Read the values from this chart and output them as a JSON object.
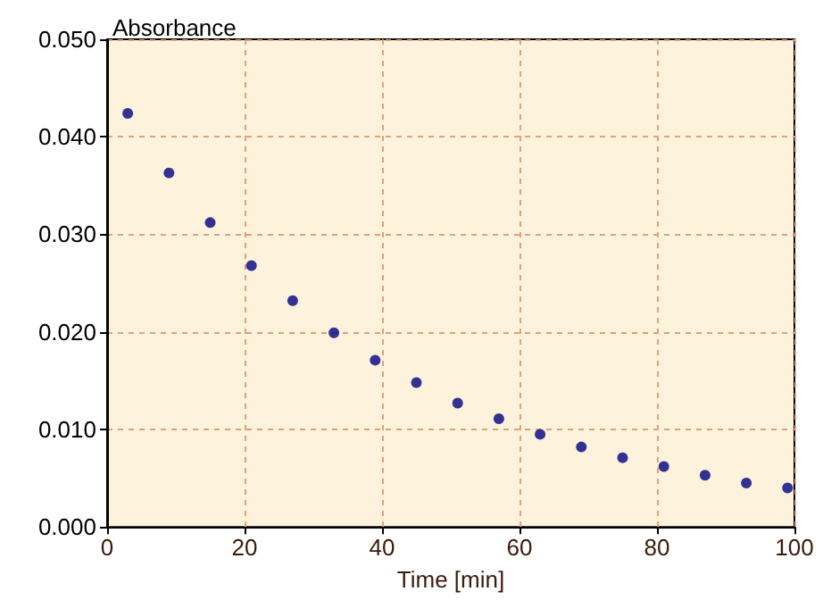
{
  "chart_data": {
    "type": "scatter",
    "xlabel": "Time [min]",
    "ylabel": "Absorbance",
    "x": [
      3,
      9,
      15,
      21,
      27,
      33,
      39,
      45,
      51,
      57,
      63,
      69,
      75,
      81,
      87,
      93,
      99
    ],
    "series": [
      {
        "color": "#000080",
        "values": [
          0.0424,
          0.0363,
          0.0312,
          0.0268,
          0.0232,
          0.0199,
          0.0171,
          0.0148,
          0.0127,
          0.0111,
          0.0095,
          0.0082,
          0.0071,
          0.0062,
          0.0053,
          0.0045,
          0.004
        ]
      }
    ],
    "xlim": [
      0,
      100
    ],
    "xticks": [
      0,
      20,
      40,
      60,
      80,
      100
    ],
    "ylim": [
      0,
      0.05
    ],
    "yticks": [
      {
        "value": 0,
        "label": "0.000"
      },
      {
        "value": 0.01,
        "label": "0.010"
      },
      {
        "value": 0.02,
        "label": "0.020"
      },
      {
        "value": 0.03,
        "label": "0.030"
      },
      {
        "value": 0.04,
        "label": "0.040"
      },
      {
        "value": 0.05,
        "label": "0.050"
      }
    ],
    "grid": true,
    "marker": "circle"
  }
}
